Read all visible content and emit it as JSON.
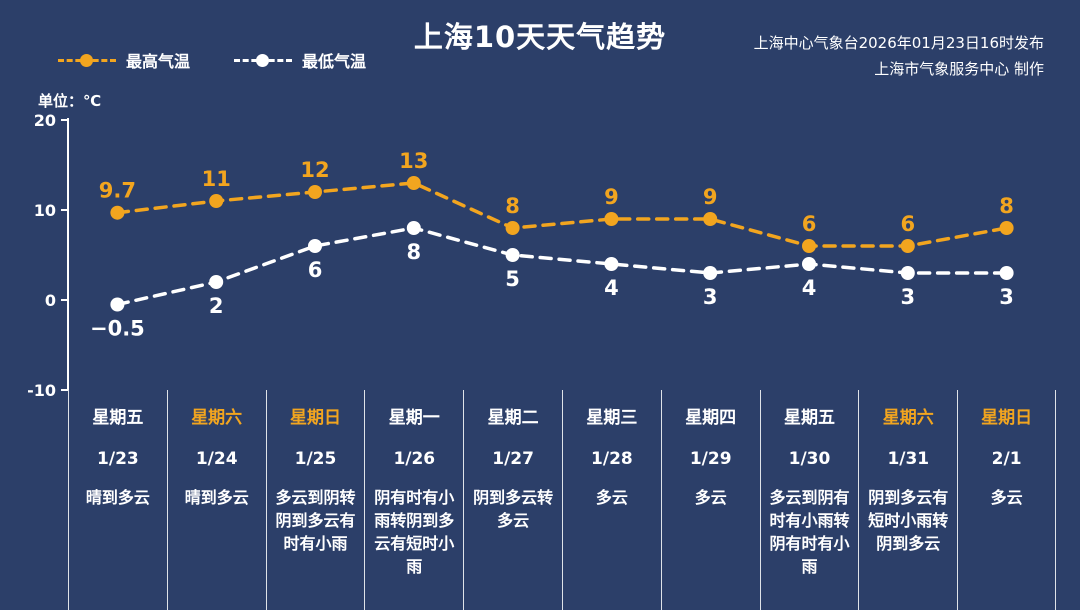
{
  "title": "上海10天天气趋势",
  "publisher": {
    "line1": "上海中心气象台2026年01月23日16时发布",
    "line2": "上海市气象服务中心  制作"
  },
  "legend": {
    "max_label": "最高气温",
    "min_label": "最低气温"
  },
  "unit_label": "单位：℃",
  "colors": {
    "background": "#2c3f69",
    "foreground": "#ffffff",
    "max": "#f2a51f",
    "min": "#ffffff",
    "weekend": "#f2a51f",
    "axis": "#ffffff"
  },
  "chart_data": {
    "type": "line",
    "title": "上海10天天气趋势",
    "ylabel": "单位：℃",
    "ylim": [
      -10,
      20
    ],
    "yticks": [
      20,
      10,
      0,
      -10
    ],
    "grid": false,
    "legend_position": "top-left",
    "categories": [
      "1/23",
      "1/24",
      "1/25",
      "1/26",
      "1/27",
      "1/28",
      "1/29",
      "1/30",
      "1/31",
      "2/1"
    ],
    "weekdays": [
      "星期五",
      "星期六",
      "星期日",
      "星期一",
      "星期二",
      "星期三",
      "星期四",
      "星期五",
      "星期六",
      "星期日"
    ],
    "weekend_flags": [
      false,
      true,
      true,
      false,
      false,
      false,
      false,
      false,
      true,
      true
    ],
    "series": [
      {
        "name": "最高气温",
        "values": [
          9.7,
          11,
          12,
          13,
          8,
          9,
          9,
          6,
          6,
          8
        ],
        "labels": [
          "9.7",
          "11",
          "12",
          "13",
          "8",
          "9",
          "9",
          "6",
          "6",
          "8"
        ],
        "color": "#f2a51f"
      },
      {
        "name": "最低气温",
        "values": [
          -0.5,
          2,
          6,
          8,
          5,
          4,
          3,
          4,
          3,
          3
        ],
        "labels": [
          "−0.5",
          "2",
          "6",
          "8",
          "5",
          "4",
          "3",
          "4",
          "3",
          "3"
        ],
        "color": "#ffffff"
      }
    ],
    "descriptions": [
      "晴到多云",
      "晴到多云",
      "多云到阴转阴到多云有时有小雨",
      "阴有时有小雨转阴到多云有短时小雨",
      "阴到多云转多云",
      "多云",
      "多云",
      "多云到阴有时有小雨转阴有时有小雨",
      "阴到多云有短时小雨转阴到多云",
      "多云"
    ]
  }
}
